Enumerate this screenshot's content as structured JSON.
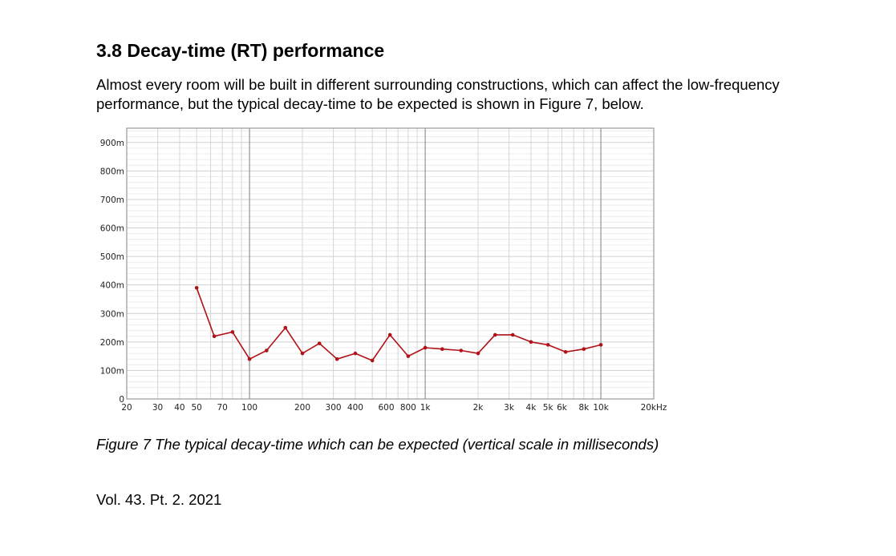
{
  "heading": "3.8 Decay-time (RT) performance",
  "intro": "Almost every room will be built in different surrounding constructions, which can affect the low-frequency performance, but the typical decay-time to be expected is shown in Figure 7, below.",
  "caption": "Figure 7 The typical decay-time which can be expected (vertical scale in milliseconds)",
  "footer": "Vol. 43. Pt. 2. 2021",
  "chart_data": {
    "type": "line",
    "title": "",
    "xlabel": "",
    "ylabel": "",
    "x_scale": "log",
    "xlim": [
      20,
      20000
    ],
    "ylim": [
      0,
      950
    ],
    "grid": true,
    "x_ticks": [
      {
        "value": 20,
        "label": "20"
      },
      {
        "value": 30,
        "label": "30"
      },
      {
        "value": 40,
        "label": "40"
      },
      {
        "value": 50,
        "label": "50"
      },
      {
        "value": 70,
        "label": "70"
      },
      {
        "value": 100,
        "label": "100"
      },
      {
        "value": 200,
        "label": "200"
      },
      {
        "value": 300,
        "label": "300"
      },
      {
        "value": 400,
        "label": "400"
      },
      {
        "value": 600,
        "label": "600"
      },
      {
        "value": 800,
        "label": "800"
      },
      {
        "value": 1000,
        "label": "1k"
      },
      {
        "value": 2000,
        "label": "2k"
      },
      {
        "value": 3000,
        "label": "3k"
      },
      {
        "value": 4000,
        "label": "4k"
      },
      {
        "value": 5000,
        "label": "5k"
      },
      {
        "value": 6000,
        "label": "6k"
      },
      {
        "value": 8000,
        "label": "8k"
      },
      {
        "value": 10000,
        "label": "10k"
      },
      {
        "value": 20000,
        "label": "20kHz"
      }
    ],
    "y_ticks": [
      {
        "value": 0,
        "label": "0"
      },
      {
        "value": 100,
        "label": "100m"
      },
      {
        "value": 200,
        "label": "200m"
      },
      {
        "value": 300,
        "label": "300m"
      },
      {
        "value": 400,
        "label": "400m"
      },
      {
        "value": 500,
        "label": "500m"
      },
      {
        "value": 600,
        "label": "600m"
      },
      {
        "value": 700,
        "label": "700m"
      },
      {
        "value": 800,
        "label": "800m"
      },
      {
        "value": 900,
        "label": "900m"
      }
    ],
    "series": [
      {
        "color": "#b01218",
        "points": [
          [
            50,
            390
          ],
          [
            63,
            220
          ],
          [
            80,
            235
          ],
          [
            100,
            140
          ],
          [
            125,
            170
          ],
          [
            160,
            250
          ],
          [
            200,
            160
          ],
          [
            250,
            195
          ],
          [
            315,
            140
          ],
          [
            400,
            160
          ],
          [
            500,
            135
          ],
          [
            630,
            225
          ],
          [
            800,
            150
          ],
          [
            1000,
            180
          ],
          [
            1250,
            175
          ],
          [
            1600,
            170
          ],
          [
            2000,
            160
          ],
          [
            2500,
            225
          ],
          [
            3150,
            225
          ],
          [
            4000,
            200
          ],
          [
            5000,
            190
          ],
          [
            6300,
            165
          ],
          [
            8000,
            175
          ],
          [
            10000,
            190
          ]
        ]
      }
    ]
  }
}
